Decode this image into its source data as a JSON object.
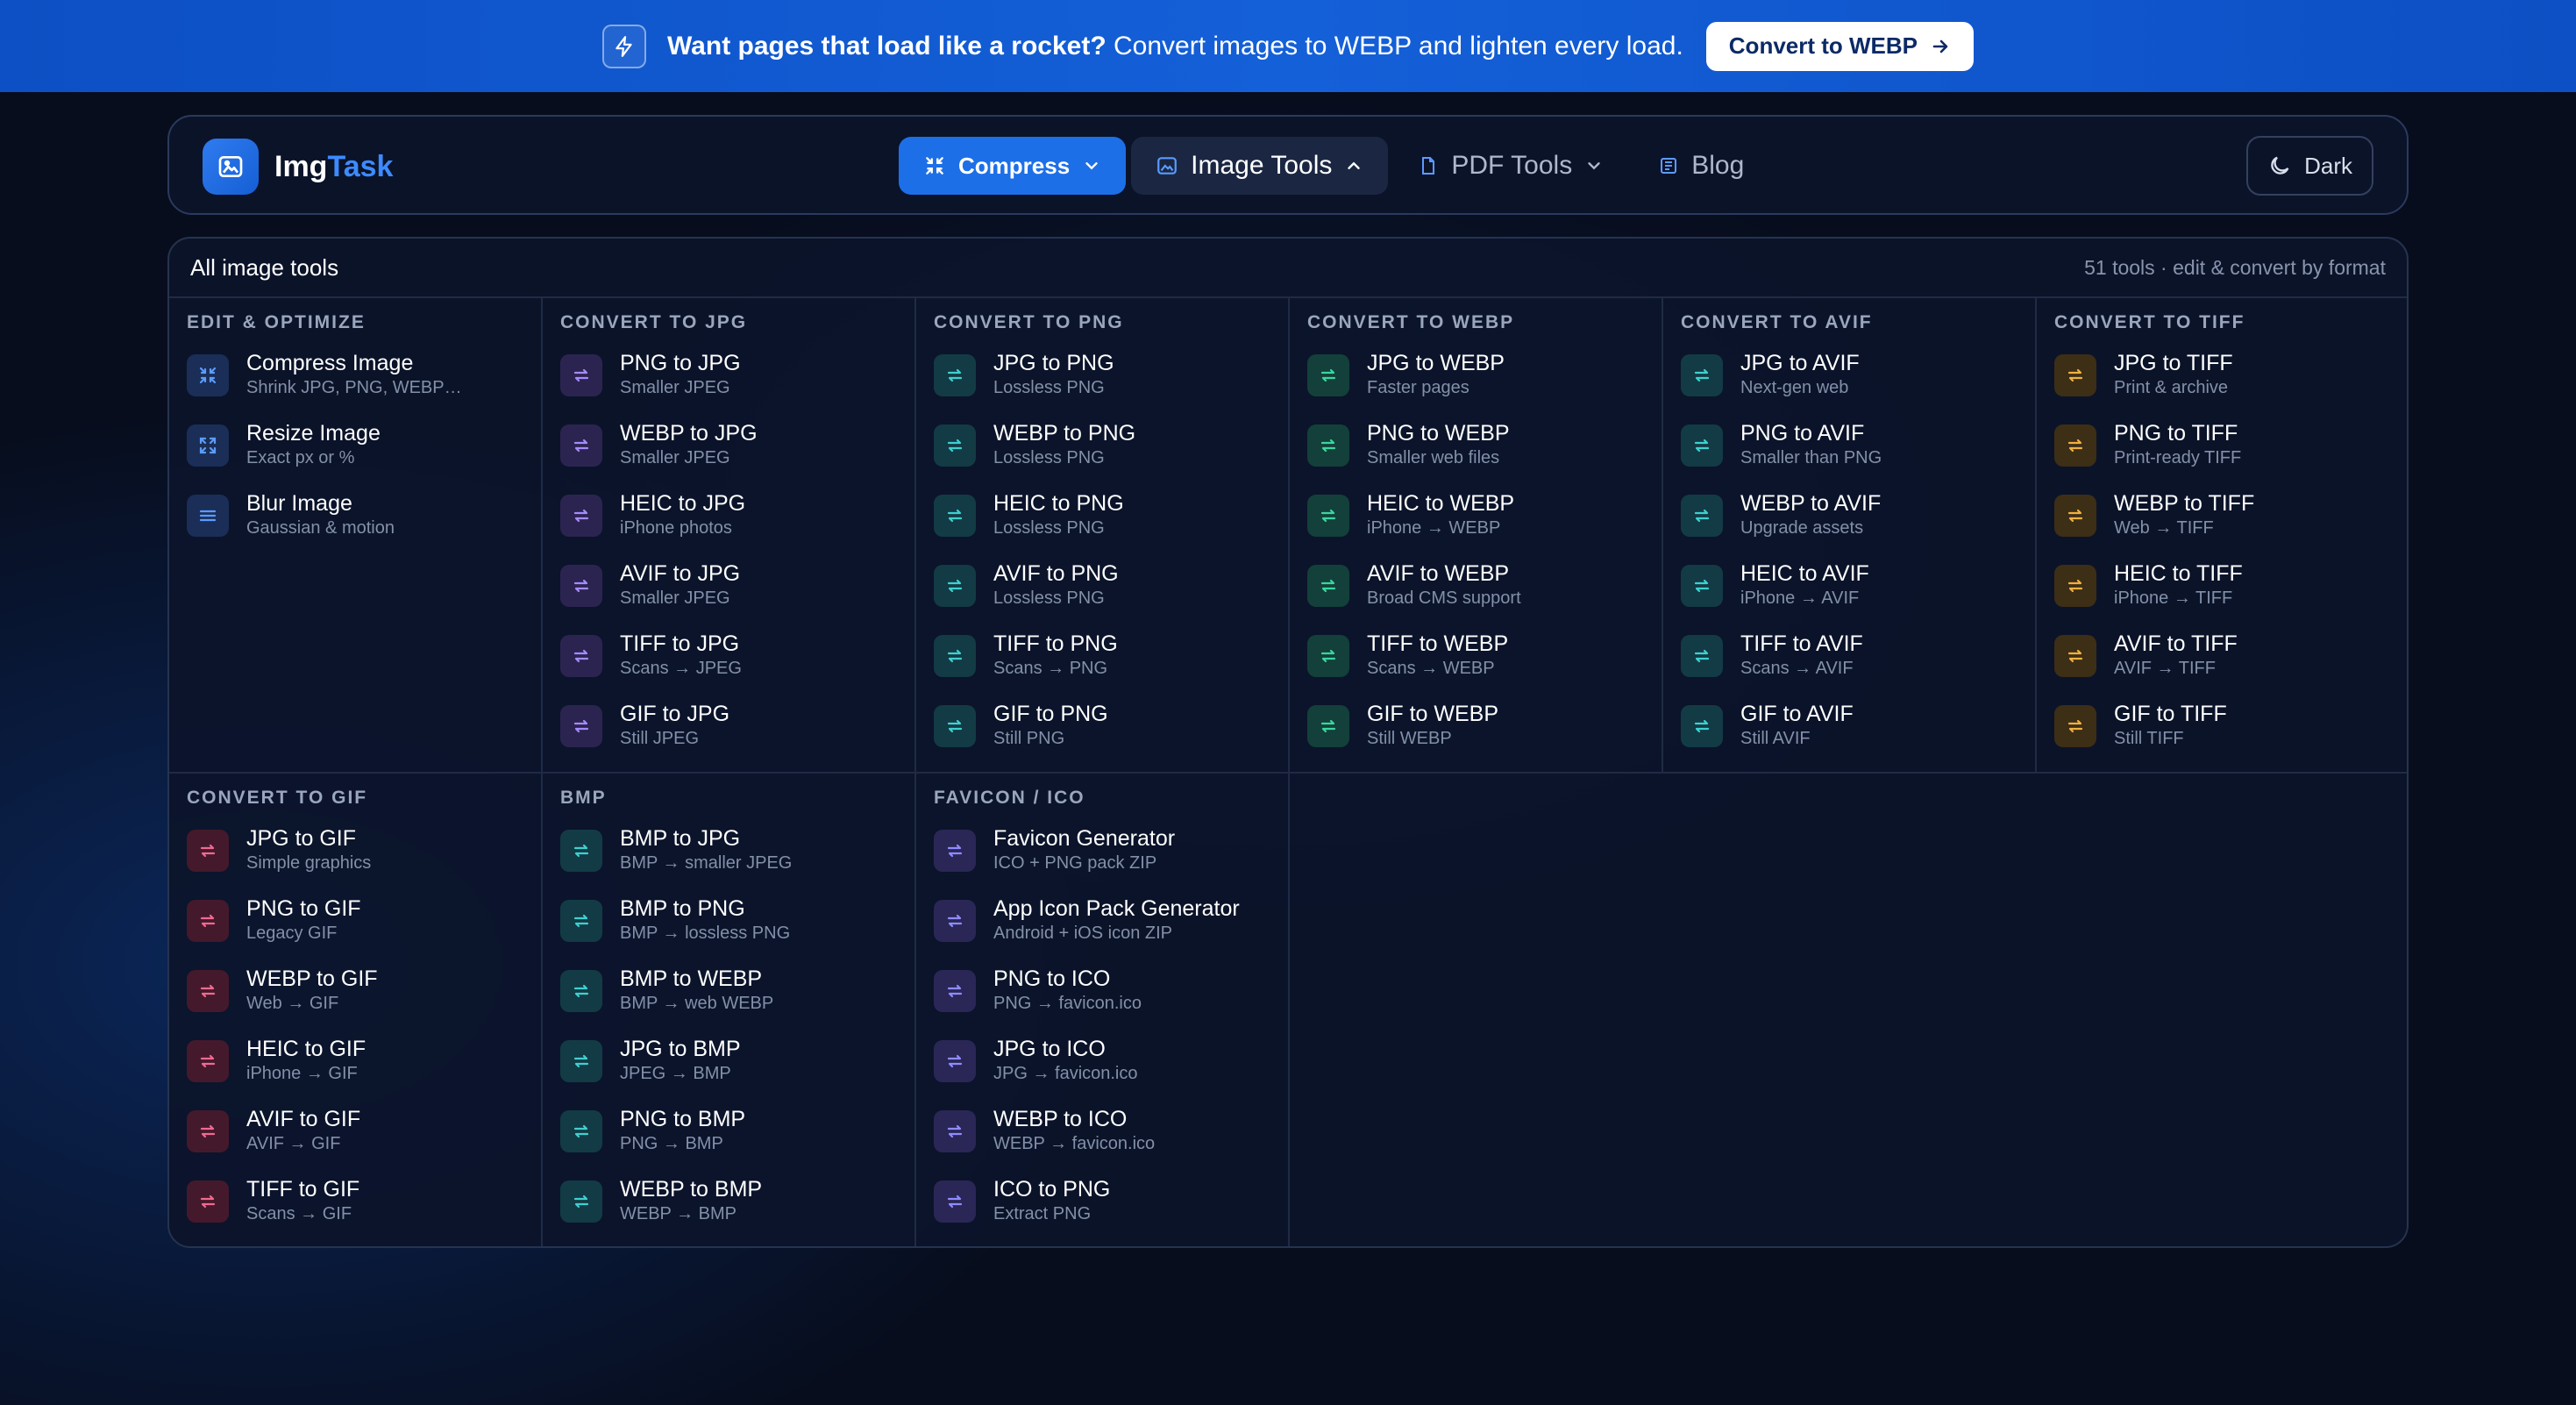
{
  "banner": {
    "headline": "Want pages that load like a rocket?",
    "body": " Convert images to WEBP and lighten every load.",
    "cta": "Convert to WEBP"
  },
  "nav": {
    "logo_img": "Img",
    "logo_task": "Task",
    "compress": "Compress",
    "image_tools": "Image Tools",
    "pdf_tools": "PDF Tools",
    "blog": "Blog",
    "theme": "Dark"
  },
  "panel": {
    "title": "All image tools",
    "meta": "51 tools · edit & convert by format"
  },
  "sections": [
    {
      "title": "EDIT & OPTIMIZE",
      "items": [
        {
          "name": "Compress Image",
          "desc": "Shrink JPG, PNG, WEBP…",
          "icon": "compress-icon"
        },
        {
          "name": "Resize Image",
          "desc": "Exact px or %",
          "icon": "resize-icon"
        },
        {
          "name": "Blur Image",
          "desc": "Gaussian & motion",
          "icon": "sliders-icon"
        }
      ]
    },
    {
      "title": "CONVERT TO JPG",
      "items": [
        {
          "name": "PNG to JPG",
          "desc": "Smaller JPEG"
        },
        {
          "name": "WEBP to JPG",
          "desc": "Smaller JPEG"
        },
        {
          "name": "HEIC to JPG",
          "desc": "iPhone photos"
        },
        {
          "name": "AVIF to JPG",
          "desc": "Smaller JPEG"
        },
        {
          "name": "TIFF to JPG",
          "desc": "Scans → JPEG"
        },
        {
          "name": "GIF to JPG",
          "desc": "Still JPEG"
        }
      ]
    },
    {
      "title": "CONVERT TO PNG",
      "items": [
        {
          "name": "JPG to PNG",
          "desc": "Lossless PNG"
        },
        {
          "name": "WEBP to PNG",
          "desc": "Lossless PNG"
        },
        {
          "name": "HEIC to PNG",
          "desc": "Lossless PNG"
        },
        {
          "name": "AVIF to PNG",
          "desc": "Lossless PNG"
        },
        {
          "name": "TIFF to PNG",
          "desc": "Scans → PNG"
        },
        {
          "name": "GIF to PNG",
          "desc": "Still PNG"
        }
      ]
    },
    {
      "title": "CONVERT TO WEBP",
      "items": [
        {
          "name": "JPG to WEBP",
          "desc": "Faster pages"
        },
        {
          "name": "PNG to WEBP",
          "desc": "Smaller web files"
        },
        {
          "name": "HEIC to WEBP",
          "desc": "iPhone → WEBP"
        },
        {
          "name": "AVIF to WEBP",
          "desc": "Broad CMS support"
        },
        {
          "name": "TIFF to WEBP",
          "desc": "Scans → WEBP"
        },
        {
          "name": "GIF to WEBP",
          "desc": "Still WEBP"
        }
      ]
    },
    {
      "title": "CONVERT TO AVIF",
      "items": [
        {
          "name": "JPG to AVIF",
          "desc": "Next-gen web"
        },
        {
          "name": "PNG to AVIF",
          "desc": "Smaller than PNG"
        },
        {
          "name": "WEBP to AVIF",
          "desc": "Upgrade assets"
        },
        {
          "name": "HEIC to AVIF",
          "desc": "iPhone → AVIF"
        },
        {
          "name": "TIFF to AVIF",
          "desc": "Scans → AVIF"
        },
        {
          "name": "GIF to AVIF",
          "desc": "Still AVIF"
        }
      ]
    },
    {
      "title": "CONVERT TO TIFF",
      "items": [
        {
          "name": "JPG to TIFF",
          "desc": "Print & archive"
        },
        {
          "name": "PNG to TIFF",
          "desc": "Print-ready TIFF"
        },
        {
          "name": "WEBP to TIFF",
          "desc": "Web → TIFF"
        },
        {
          "name": "HEIC to TIFF",
          "desc": "iPhone → TIFF"
        },
        {
          "name": "AVIF to TIFF",
          "desc": "AVIF → TIFF"
        },
        {
          "name": "GIF to TIFF",
          "desc": "Still TIFF"
        }
      ]
    },
    {
      "title": "CONVERT TO GIF",
      "items": [
        {
          "name": "JPG to GIF",
          "desc": "Simple graphics"
        },
        {
          "name": "PNG to GIF",
          "desc": "Legacy GIF"
        },
        {
          "name": "WEBP to GIF",
          "desc": "Web → GIF"
        },
        {
          "name": "HEIC to GIF",
          "desc": "iPhone → GIF"
        },
        {
          "name": "AVIF to GIF",
          "desc": "AVIF → GIF"
        },
        {
          "name": "TIFF to GIF",
          "desc": "Scans → GIF"
        }
      ]
    },
    {
      "title": "BMP",
      "items": [
        {
          "name": "BMP to JPG",
          "desc": "BMP → smaller JPEG"
        },
        {
          "name": "BMP to PNG",
          "desc": "BMP → lossless PNG"
        },
        {
          "name": "BMP to WEBP",
          "desc": "BMP → web WEBP"
        },
        {
          "name": "JPG to BMP",
          "desc": "JPEG → BMP"
        },
        {
          "name": "PNG to BMP",
          "desc": "PNG → BMP"
        },
        {
          "name": "WEBP to BMP",
          "desc": "WEBP → BMP"
        }
      ]
    },
    {
      "title": "FAVICON / ICO",
      "items": [
        {
          "name": "Favicon Generator",
          "desc": "ICO + PNG pack ZIP"
        },
        {
          "name": "App Icon Pack Generator",
          "desc": "Android + iOS icon ZIP"
        },
        {
          "name": "PNG to ICO",
          "desc": "PNG → favicon.ico"
        },
        {
          "name": "JPG to ICO",
          "desc": "JPG → favicon.ico"
        },
        {
          "name": "WEBP to ICO",
          "desc": "WEBP → favicon.ico"
        },
        {
          "name": "ICO to PNG",
          "desc": "Extract PNG"
        }
      ]
    }
  ]
}
